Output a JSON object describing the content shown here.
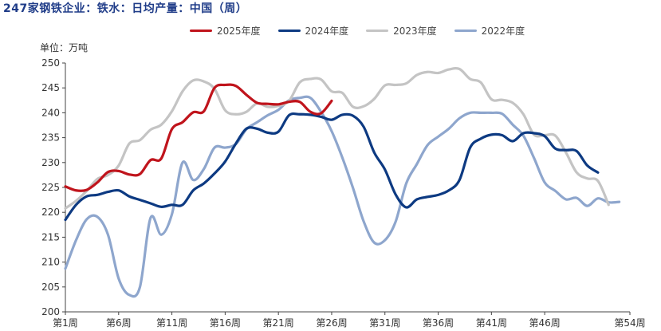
{
  "header": {
    "title": "247家钢铁企业：铁水：日均产量：中国（周）",
    "unit": "单位：万吨"
  },
  "colors": {
    "2025": "#c0141c",
    "2024": "#0d3a82",
    "2023": "#c4c4c4",
    "2022": "#8ea6cd"
  },
  "chart_data": {
    "type": "line",
    "title": "247家钢铁企业：铁水：日均产量：中国（周）",
    "ylabel": "单位：万吨",
    "xlabel": "",
    "ylim": [
      200,
      250
    ],
    "yticks": [
      200,
      205,
      210,
      215,
      220,
      225,
      230,
      235,
      240,
      245,
      250
    ],
    "xlim": [
      1,
      54
    ],
    "xticks": [
      {
        "week": 1,
        "label": "第1周"
      },
      {
        "week": 6,
        "label": "第6周"
      },
      {
        "week": 11,
        "label": "第11周"
      },
      {
        "week": 16,
        "label": "第16周"
      },
      {
        "week": 21,
        "label": "第21周"
      },
      {
        "week": 26,
        "label": "第26周"
      },
      {
        "week": 31,
        "label": "第31周"
      },
      {
        "week": 36,
        "label": "第36周"
      },
      {
        "week": 41,
        "label": "第41周"
      },
      {
        "week": 46,
        "label": "第46周"
      },
      {
        "week": 54,
        "label": "第54周"
      }
    ],
    "legend_position": "top",
    "grid": false,
    "series": [
      {
        "name": "2025年度",
        "values": [
          225.2,
          224.4,
          224.5,
          226.0,
          228.1,
          228.3,
          227.6,
          227.7,
          230.5,
          230.8,
          236.7,
          238.1,
          240.1,
          240.3,
          245.0,
          245.6,
          245.4,
          243.6,
          242.0,
          241.8,
          241.7,
          242.2,
          242.2,
          240.2,
          239.9,
          242.4
        ]
      },
      {
        "name": "2024年度",
        "values": [
          218.5,
          221.5,
          223.2,
          223.5,
          224.1,
          224.4,
          223.2,
          222.5,
          221.8,
          221.1,
          221.5,
          221.5,
          224.4,
          225.8,
          227.8,
          230.2,
          233.8,
          236.8,
          236.8,
          236.0,
          236.2,
          239.5,
          239.7,
          239.6,
          239.2,
          238.6,
          239.6,
          239.4,
          237.2,
          232.0,
          228.6,
          223.6,
          221.0,
          222.6,
          223.1,
          223.5,
          224.4,
          226.5,
          233.0,
          234.8,
          235.6,
          235.5,
          234.3,
          235.9,
          235.9,
          235.3,
          232.8,
          232.5,
          232.3,
          229.4,
          228.0
        ]
      },
      {
        "name": "2023年度",
        "values": [
          220.8,
          222.3,
          224.3,
          226.7,
          227.5,
          229.4,
          233.8,
          234.5,
          236.6,
          237.6,
          240.3,
          244.3,
          246.5,
          246.3,
          244.8,
          240.5,
          239.7,
          240.2,
          241.9,
          241.2,
          241.4,
          242.4,
          246.1,
          246.8,
          246.7,
          244.3,
          244.0,
          241.2,
          241.3,
          242.8,
          245.5,
          245.6,
          245.9,
          247.6,
          248.2,
          248.0,
          248.7,
          248.8,
          246.8,
          246.1,
          242.7,
          242.6,
          242.0,
          239.7,
          235.6,
          235.5,
          235.4,
          232.0,
          228.0,
          226.8,
          226.3,
          221.5
        ]
      },
      {
        "name": "2022年度",
        "values": [
          208.7,
          214.4,
          218.6,
          219.1,
          215.5,
          206.7,
          203.4,
          205.0,
          218.9,
          215.5,
          219.6,
          230.0,
          226.5,
          228.7,
          233.0,
          233.0,
          233.7,
          236.7,
          238.1,
          239.5,
          240.6,
          242.5,
          243.0,
          243.0,
          240.2,
          236.3,
          231.0,
          224.9,
          218.2,
          213.9,
          214.4,
          218.1,
          225.8,
          229.7,
          233.5,
          235.2,
          236.8,
          238.9,
          240.0,
          240.0,
          240.0,
          239.8,
          237.6,
          235.4,
          230.9,
          226.0,
          224.3,
          222.6,
          222.9,
          221.3,
          222.8,
          222.0,
          222.1
        ]
      }
    ]
  }
}
